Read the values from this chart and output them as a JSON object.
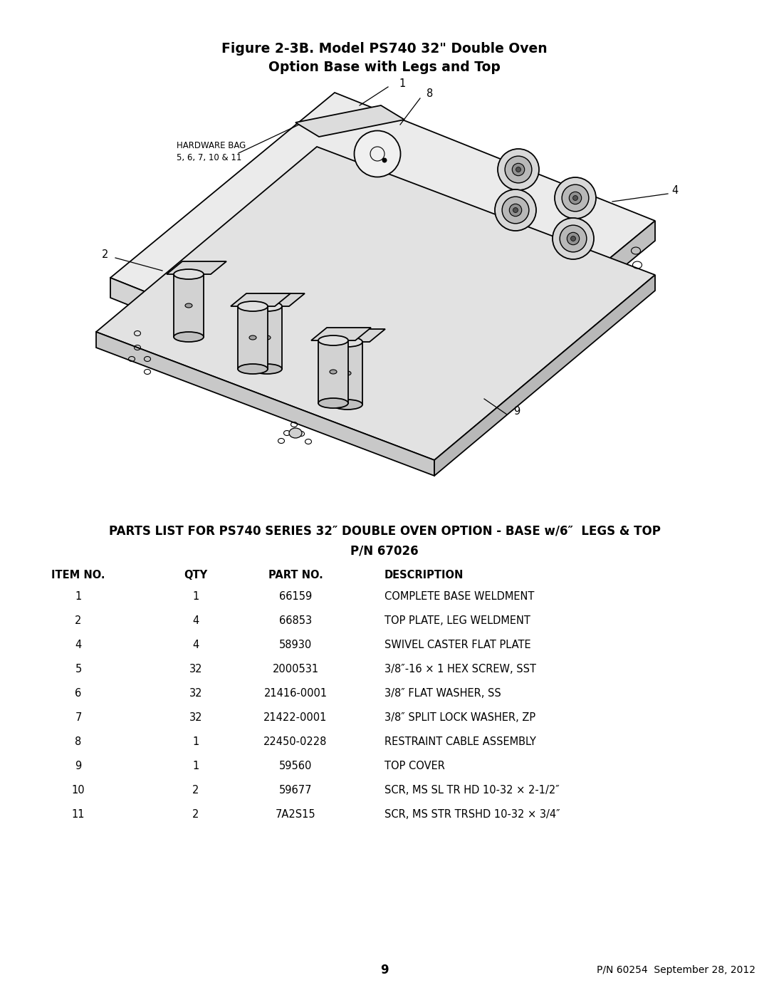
{
  "figure_title_line1": "Figure 2-3B. Model PS740 32\" Double Oven",
  "figure_title_line2": "Option Base with Legs and Top",
  "parts_list_title_line1": "PARTS LIST FOR PS740 SERIES 32″ DOUBLE OVEN OPTION - BASE w/6″  LEGS & TOP",
  "parts_list_title_line2": "P/N 67026",
  "columns": [
    "ITEM NO.",
    "QTY",
    "PART NO.",
    "DESCRIPTION"
  ],
  "rows": [
    [
      "1",
      "1",
      "66159",
      "COMPLETE BASE WELDMENT"
    ],
    [
      "2",
      "4",
      "66853",
      "TOP PLATE, LEG WELDMENT"
    ],
    [
      "4",
      "4",
      "58930",
      "SWIVEL CASTER FLAT PLATE"
    ],
    [
      "5",
      "32",
      "2000531",
      "3/8″-16 × 1 HEX SCREW, SST"
    ],
    [
      "6",
      "32",
      "21416-0001",
      "3/8″ FLAT WASHER, SS"
    ],
    [
      "7",
      "32",
      "21422-0001",
      "3/8″ SPLIT LOCK WASHER, ZP"
    ],
    [
      "8",
      "1",
      "22450-0228",
      "RESTRAINT CABLE ASSEMBLY"
    ],
    [
      "9",
      "1",
      "59560",
      "TOP COVER"
    ],
    [
      "10",
      "2",
      "59677",
      "SCR, MS SL TR HD 10-32 × 2-1/2″"
    ],
    [
      "11",
      "2",
      "7A2S15",
      "SCR, MS STR TRSHD 10-32 × 3/4″"
    ]
  ],
  "page_number": "9",
  "footer_right": "P/N 60254  September 28, 2012",
  "hardware_bag_label": "HARDWARE BAG",
  "hardware_bag_items": "5, 6, 7, 10 & 11",
  "bg_color": "#ffffff",
  "text_color": "#000000"
}
